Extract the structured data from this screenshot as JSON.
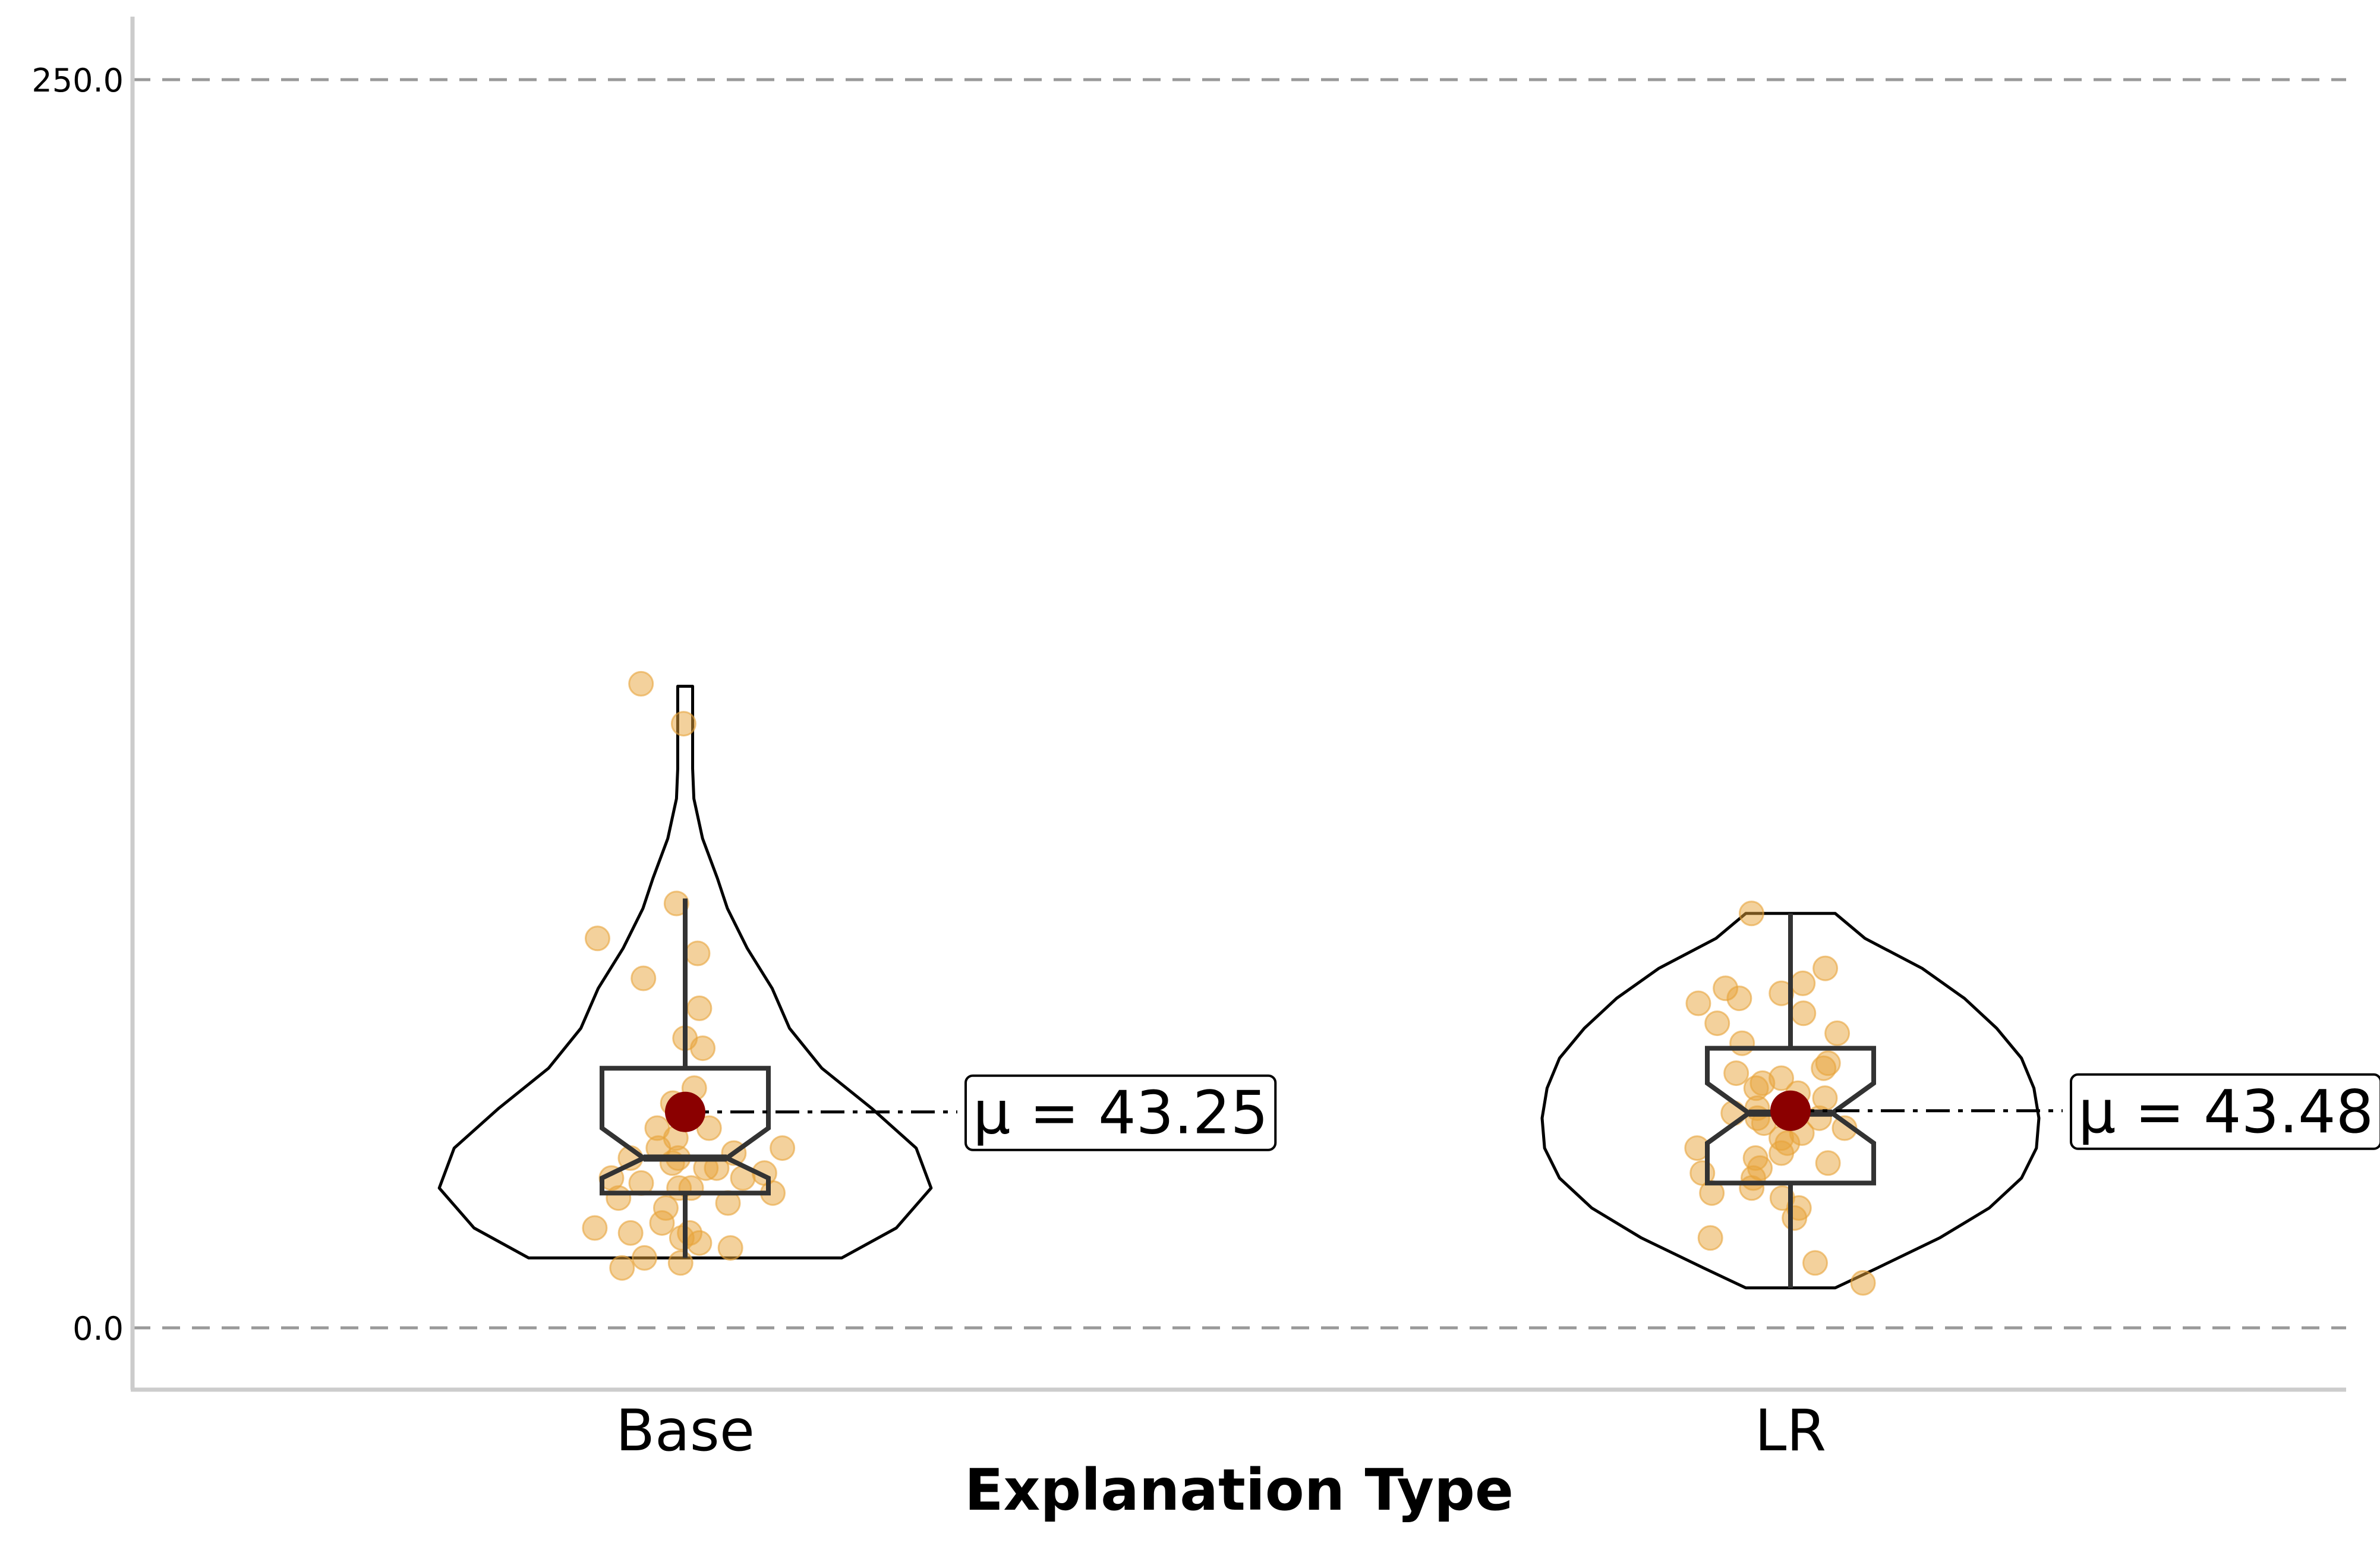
{
  "chart_data": {
    "type": "violin",
    "title": "",
    "xlabel": "Explanation Type",
    "ylabel": "",
    "ylim": [
      -12.2,
      263.5
    ],
    "yticks": [
      0.0,
      250.0
    ],
    "ytick_labels": [
      "0.0",
      "250.0"
    ],
    "grid": "horizontal dashed at ticks",
    "colors": {
      "points": "#E8A33A",
      "mean": "#8B0000",
      "outline": "#000000",
      "box": "#333333",
      "grid": "#999999",
      "spine": "#CCCCCC"
    },
    "categories": [
      "Base",
      "LR"
    ],
    "groups": [
      {
        "name": "Base",
        "mean_label": "μ = 43.25",
        "mean": 43.25,
        "median": 34.0,
        "q1": 27.0,
        "q3": 52.0,
        "whisker_low": 14.0,
        "whisker_high": 86.0,
        "notch_low": 30.0,
        "notch_high": 40.0,
        "violin_min": 14.0,
        "violin_max": 128.5,
        "density": [
          [
            14,
            0.63
          ],
          [
            20,
            0.85
          ],
          [
            28,
            0.99
          ],
          [
            36,
            0.93
          ],
          [
            44,
            0.75
          ],
          [
            52,
            0.55
          ],
          [
            60,
            0.42
          ],
          [
            68,
            0.35
          ],
          [
            76,
            0.25
          ],
          [
            84,
            0.17
          ],
          [
            90,
            0.13
          ],
          [
            98,
            0.07
          ],
          [
            106,
            0.035
          ],
          [
            112,
            0.03
          ],
          [
            118,
            0.03
          ],
          [
            124,
            0.03
          ],
          [
            128.5,
            0.03
          ]
        ],
        "points": [
          121,
          129,
          85,
          78,
          75,
          70,
          64,
          58,
          56,
          48,
          40,
          36,
          34,
          35,
          33,
          32,
          30,
          28,
          28,
          26,
          24,
          20,
          19,
          18,
          17,
          16,
          14,
          13,
          12,
          32,
          30,
          38,
          45,
          34,
          36,
          40,
          29,
          31,
          27,
          25,
          19,
          21
        ]
      },
      {
        "name": "LR",
        "mean_label": "μ = 43.48",
        "mean": 43.48,
        "median": 43.0,
        "q1": 29.0,
        "q3": 56.0,
        "whisker_low": 8.0,
        "whisker_high": 83.0,
        "notch_low": 37.0,
        "notch_high": 49.0,
        "violin_min": 8.0,
        "violin_max": 83.0,
        "density": [
          [
            8,
            0.18
          ],
          [
            12,
            0.35
          ],
          [
            18,
            0.6
          ],
          [
            24,
            0.8
          ],
          [
            30,
            0.93
          ],
          [
            36,
            0.99
          ],
          [
            42,
            1.0
          ],
          [
            48,
            0.98
          ],
          [
            54,
            0.93
          ],
          [
            60,
            0.83
          ],
          [
            66,
            0.7
          ],
          [
            72,
            0.53
          ],
          [
            78,
            0.3
          ],
          [
            83,
            0.18
          ]
        ],
        "points": [
          83,
          72,
          66,
          68,
          69,
          65,
          67,
          63,
          61,
          59,
          57,
          53,
          52,
          51,
          49,
          48,
          47,
          46,
          45,
          44,
          43,
          42,
          42,
          41,
          39,
          38,
          37,
          36,
          35,
          34,
          33,
          32,
          31,
          30,
          28,
          27,
          26,
          24,
          22,
          18,
          13,
          9,
          50,
          40
        ]
      }
    ]
  }
}
